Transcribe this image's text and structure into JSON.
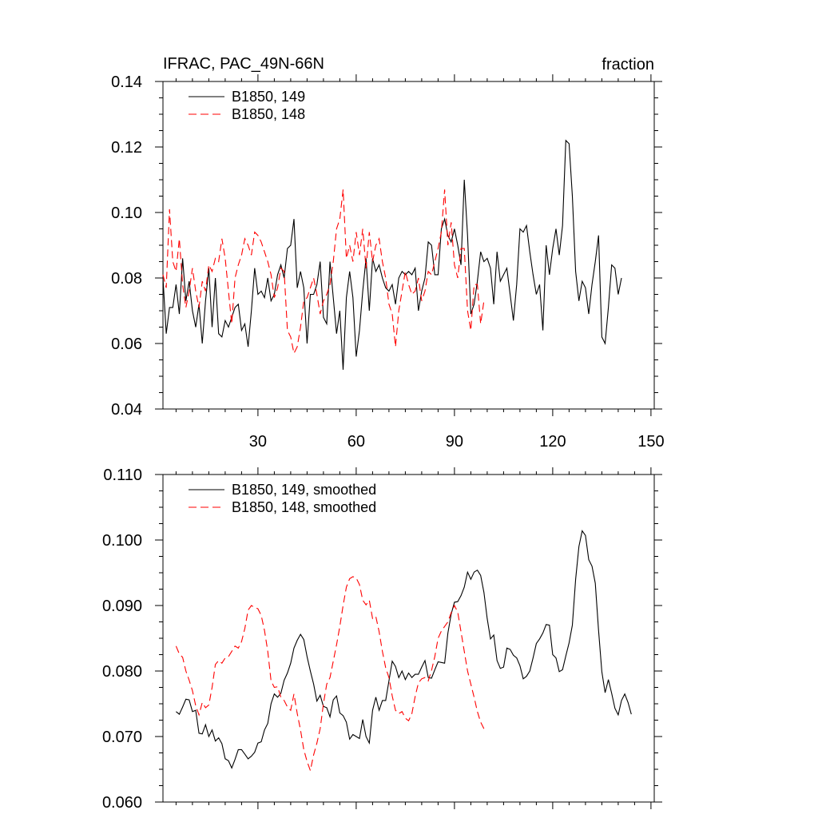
{
  "chart_data": [
    {
      "type": "line",
      "title": "IFRAC, PAC_49N-66N",
      "units_label": "fraction",
      "xlim": [
        1,
        151
      ],
      "ylim": [
        0.04,
        0.14
      ],
      "x_ticks": [
        30,
        60,
        90,
        120,
        150
      ],
      "x_tick_labels": [
        "30",
        "60",
        "90",
        "120",
        "150"
      ],
      "y_ticks": [
        0.04,
        0.06,
        0.08,
        0.1,
        0.12,
        0.14
      ],
      "y_tick_labels": [
        "0.04",
        "0.06",
        "0.08",
        "0.10",
        "0.12",
        "0.14"
      ],
      "legend_position": "top-left",
      "series": [
        {
          "name": "B1850, 149",
          "color": "#000000",
          "dash": "solid",
          "x_start": 1,
          "values": [
            0.08,
            0.063,
            0.071,
            0.071,
            0.078,
            0.069,
            0.086,
            0.073,
            0.079,
            0.07,
            0.065,
            0.072,
            0.06,
            0.073,
            0.083,
            0.065,
            0.08,
            0.063,
            0.062,
            0.067,
            0.065,
            0.068,
            0.071,
            0.072,
            0.064,
            0.066,
            0.059,
            0.07,
            0.083,
            0.075,
            0.076,
            0.074,
            0.08,
            0.073,
            0.075,
            0.081,
            0.084,
            0.08,
            0.089,
            0.09,
            0.098,
            0.077,
            0.082,
            0.077,
            0.06,
            0.075,
            0.075,
            0.078,
            0.085,
            0.068,
            0.066,
            0.085,
            0.074,
            0.063,
            0.07,
            0.052,
            0.074,
            0.082,
            0.074,
            0.056,
            0.064,
            0.076,
            0.086,
            0.07,
            0.086,
            0.082,
            0.084,
            0.08,
            0.077,
            0.076,
            0.078,
            0.072,
            0.08,
            0.082,
            0.081,
            0.082,
            0.081,
            0.083,
            0.07,
            0.076,
            0.08,
            0.091,
            0.09,
            0.081,
            0.081,
            0.095,
            0.098,
            0.093,
            0.091,
            0.095,
            0.09,
            0.084,
            0.11,
            0.093,
            0.069,
            0.072,
            0.079,
            0.088,
            0.085,
            0.086,
            0.083,
            0.072,
            0.088,
            0.079,
            0.081,
            0.083,
            0.075,
            0.067,
            0.078,
            0.095,
            0.094,
            0.096,
            0.088,
            0.081,
            0.075,
            0.078,
            0.064,
            0.09,
            0.081,
            0.089,
            0.095,
            0.087,
            0.096,
            0.122,
            0.121,
            0.105,
            0.082,
            0.073,
            0.079,
            0.077,
            0.069,
            0.078,
            0.085,
            0.093,
            0.062,
            0.06,
            0.071,
            0.084,
            0.083,
            0.075,
            0.08
          ]
        },
        {
          "name": "B1850, 148",
          "color": "#ff0000",
          "dash": "dashed",
          "x_start": 1,
          "values": [
            0.081,
            0.077,
            0.101,
            0.085,
            0.082,
            0.092,
            0.078,
            0.071,
            0.076,
            0.083,
            0.076,
            0.071,
            0.079,
            0.076,
            0.084,
            0.082,
            0.086,
            0.085,
            0.092,
            0.086,
            0.076,
            0.066,
            0.08,
            0.084,
            0.087,
            0.092,
            0.09,
            0.087,
            0.094,
            0.093,
            0.091,
            0.088,
            0.085,
            0.081,
            0.074,
            0.077,
            0.083,
            0.082,
            0.064,
            0.062,
            0.057,
            0.059,
            0.065,
            0.073,
            0.074,
            0.077,
            0.08,
            0.075,
            0.069,
            0.073,
            0.075,
            0.078,
            0.085,
            0.095,
            0.098,
            0.107,
            0.086,
            0.09,
            0.085,
            0.094,
            0.087,
            0.095,
            0.083,
            0.094,
            0.085,
            0.09,
            0.092,
            0.085,
            0.08,
            0.072,
            0.069,
            0.059,
            0.07,
            0.076,
            0.082,
            0.078,
            0.075,
            0.076,
            0.08,
            0.073,
            0.076,
            0.082,
            0.081,
            0.085,
            0.089,
            0.094,
            0.107,
            0.09,
            0.097,
            0.084,
            0.08,
            0.089,
            0.089,
            0.07,
            0.064,
            0.078,
            0.078,
            0.066,
            0.073
          ]
        }
      ]
    },
    {
      "type": "line",
      "xlim": [
        1,
        151
      ],
      "ylim": [
        0.06,
        0.11
      ],
      "x_ticks": [
        30,
        60,
        90,
        120,
        150
      ],
      "y_ticks": [
        0.06,
        0.07,
        0.08,
        0.09,
        0.1,
        0.11
      ],
      "y_tick_labels": [
        "0.060",
        "0.070",
        "0.080",
        "0.090",
        "0.100",
        "0.110"
      ],
      "legend_position": "top-left",
      "series": [
        {
          "name": "B1850, 149, smoothed",
          "color": "#000000",
          "dash": "solid",
          "x_start": 5,
          "values": [
            0.0738,
            0.0734,
            0.0745,
            0.0757,
            0.0756,
            0.0738,
            0.074,
            0.0705,
            0.0704,
            0.0718,
            0.07,
            0.071,
            0.0693,
            0.0698,
            0.0689,
            0.0666,
            0.0663,
            0.0652,
            0.0665,
            0.068,
            0.068,
            0.0673,
            0.0666,
            0.067,
            0.0676,
            0.069,
            0.0692,
            0.071,
            0.072,
            0.075,
            0.0765,
            0.076,
            0.0766,
            0.0786,
            0.0797,
            0.0812,
            0.0835,
            0.0847,
            0.0856,
            0.0848,
            0.0822,
            0.08,
            0.078,
            0.0754,
            0.0763,
            0.0746,
            0.0744,
            0.073,
            0.0756,
            0.0762,
            0.0736,
            0.0732,
            0.0722,
            0.0696,
            0.0703,
            0.07,
            0.0697,
            0.0726,
            0.07,
            0.069,
            0.074,
            0.076,
            0.074,
            0.0755,
            0.0755,
            0.0785,
            0.0815,
            0.0807,
            0.079,
            0.08,
            0.0787,
            0.0797,
            0.079,
            0.0795,
            0.0795,
            0.0806,
            0.0816,
            0.079,
            0.0789,
            0.0802,
            0.0814,
            0.0813,
            0.0812,
            0.0858,
            0.0887,
            0.0905,
            0.0906,
            0.0915,
            0.0928,
            0.0951,
            0.094,
            0.0951,
            0.0954,
            0.0946,
            0.092,
            0.088,
            0.0849,
            0.0855,
            0.0816,
            0.0804,
            0.0806,
            0.0835,
            0.0833,
            0.0824,
            0.082,
            0.0808,
            0.0788,
            0.0792,
            0.08,
            0.082,
            0.0842,
            0.0849,
            0.0858,
            0.0871,
            0.087,
            0.0825,
            0.082,
            0.0799,
            0.0802,
            0.0823,
            0.0843,
            0.087,
            0.094,
            0.099,
            0.1014,
            0.1007,
            0.097,
            0.096,
            0.0934,
            0.0862,
            0.0799,
            0.0767,
            0.0787,
            0.0766,
            0.0743,
            0.0733,
            0.0755,
            0.0765,
            0.0752,
            0.0734
          ]
        },
        {
          "name": "B1850, 148, smoothed",
          "color": "#ff0000",
          "dash": "dashed",
          "x_start": 5,
          "values": [
            0.0838,
            0.0826,
            0.0821,
            0.08,
            0.0786,
            0.077,
            0.0747,
            0.0733,
            0.0752,
            0.0744,
            0.0748,
            0.0775,
            0.081,
            0.0816,
            0.0812,
            0.082,
            0.0822,
            0.083,
            0.0838,
            0.0835,
            0.0845,
            0.0865,
            0.0893,
            0.09,
            0.0897,
            0.0895,
            0.0885,
            0.0862,
            0.083,
            0.0785,
            0.0775,
            0.0776,
            0.076,
            0.0755,
            0.0745,
            0.074,
            0.0765,
            0.0735,
            0.071,
            0.068,
            0.0662,
            0.0648,
            0.0672,
            0.069,
            0.0712,
            0.075,
            0.078,
            0.079,
            0.0815,
            0.084,
            0.0868,
            0.09,
            0.0928,
            0.0941,
            0.0944,
            0.0942,
            0.0932,
            0.0908,
            0.0901,
            0.0908,
            0.088,
            0.0883,
            0.086,
            0.083,
            0.0805,
            0.079,
            0.0762,
            0.074,
            0.0735,
            0.0738,
            0.0728,
            0.0724,
            0.0735,
            0.0761,
            0.0782,
            0.0788,
            0.079,
            0.0785,
            0.0801,
            0.0822,
            0.085,
            0.0861,
            0.0868,
            0.0875,
            0.0889,
            0.09,
            0.089,
            0.086,
            0.083,
            0.08,
            0.078,
            0.076,
            0.0738,
            0.0722,
            0.0712
          ]
        }
      ]
    }
  ]
}
